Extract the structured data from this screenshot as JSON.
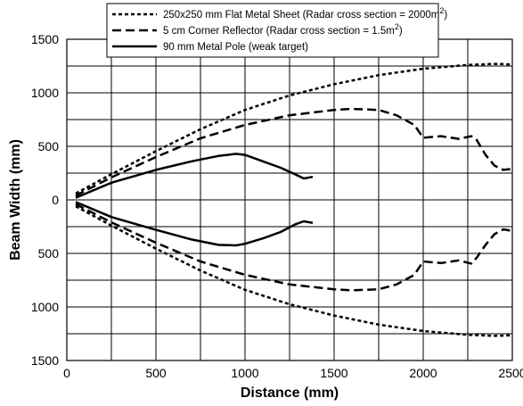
{
  "chart_data": {
    "type": "line",
    "xlabel": "Distance (mm)",
    "ylabel": "Beam Width (mm)",
    "xlim": [
      0,
      2500
    ],
    "ylim": [
      -1500,
      1500
    ],
    "x_ticks": [
      0,
      500,
      1000,
      1500,
      2000,
      2500
    ],
    "y_ticks": [
      1500,
      1000,
      500,
      0,
      -500,
      -1000,
      -1500
    ],
    "y_tick_labels": [
      "1500",
      "1000",
      "500",
      "0",
      "500",
      "1000",
      "1500"
    ],
    "grid": true,
    "legend_position": "top-center",
    "series": [
      {
        "name": "250x250 mm Flat Metal Sheet (Radar cross section = 2000m2)",
        "legend_text": "250x250 mm Flat Metal Sheet (Radar cross section = 2000m",
        "legend_sup": "2",
        "legend_suffix": ")",
        "dash": "short",
        "upper": [
          [
            50,
            60
          ],
          [
            250,
            240
          ],
          [
            500,
            455
          ],
          [
            750,
            660
          ],
          [
            1000,
            840
          ],
          [
            1250,
            975
          ],
          [
            1500,
            1080
          ],
          [
            1750,
            1165
          ],
          [
            2000,
            1225
          ],
          [
            2250,
            1260
          ],
          [
            2400,
            1270
          ],
          [
            2500,
            1265
          ]
        ],
        "lower": [
          [
            50,
            -60
          ],
          [
            250,
            -240
          ],
          [
            500,
            -455
          ],
          [
            750,
            -660
          ],
          [
            1000,
            -840
          ],
          [
            1250,
            -975
          ],
          [
            1500,
            -1080
          ],
          [
            1750,
            -1165
          ],
          [
            2000,
            -1225
          ],
          [
            2250,
            -1260
          ],
          [
            2400,
            -1270
          ],
          [
            2500,
            -1265
          ]
        ]
      },
      {
        "name": "5 cm Corner Reflector (Radar cross section = 1.5m2)",
        "legend_text": "5 cm Corner Reflector (Radar cross section = 1.5m",
        "legend_sup": "2",
        "legend_suffix": ")",
        "dash": "long",
        "upper": [
          [
            50,
            40
          ],
          [
            250,
            210
          ],
          [
            500,
            400
          ],
          [
            750,
            575
          ],
          [
            1000,
            700
          ],
          [
            1250,
            790
          ],
          [
            1500,
            840
          ],
          [
            1600,
            850
          ],
          [
            1750,
            840
          ],
          [
            1850,
            790
          ],
          [
            1950,
            700
          ],
          [
            2000,
            580
          ],
          [
            2100,
            595
          ],
          [
            2200,
            570
          ],
          [
            2270,
            595
          ],
          [
            2300,
            560
          ],
          [
            2350,
            420
          ],
          [
            2400,
            320
          ],
          [
            2450,
            280
          ],
          [
            2500,
            290
          ]
        ],
        "lower": [
          [
            50,
            -40
          ],
          [
            250,
            -210
          ],
          [
            500,
            -400
          ],
          [
            750,
            -575
          ],
          [
            1000,
            -700
          ],
          [
            1250,
            -790
          ],
          [
            1500,
            -835
          ],
          [
            1600,
            -845
          ],
          [
            1750,
            -835
          ],
          [
            1850,
            -790
          ],
          [
            1950,
            -700
          ],
          [
            2000,
            -575
          ],
          [
            2100,
            -590
          ],
          [
            2200,
            -565
          ],
          [
            2270,
            -595
          ],
          [
            2300,
            -540
          ],
          [
            2350,
            -420
          ],
          [
            2400,
            -320
          ],
          [
            2450,
            -275
          ],
          [
            2500,
            -290
          ]
        ]
      },
      {
        "name": "90 mm Metal Pole (weak target)",
        "legend_text": "90 mm Metal Pole (weak target)",
        "legend_sup": "",
        "legend_suffix": "",
        "dash": "solid",
        "upper": [
          [
            50,
            20
          ],
          [
            250,
            160
          ],
          [
            500,
            280
          ],
          [
            700,
            360
          ],
          [
            850,
            410
          ],
          [
            950,
            430
          ],
          [
            1000,
            420
          ],
          [
            1100,
            360
          ],
          [
            1200,
            300
          ],
          [
            1280,
            240
          ],
          [
            1330,
            200
          ],
          [
            1380,
            215
          ]
        ],
        "lower": [
          [
            50,
            -20
          ],
          [
            250,
            -160
          ],
          [
            500,
            -280
          ],
          [
            700,
            -370
          ],
          [
            850,
            -420
          ],
          [
            950,
            -425
          ],
          [
            1000,
            -410
          ],
          [
            1100,
            -360
          ],
          [
            1200,
            -300
          ],
          [
            1280,
            -230
          ],
          [
            1330,
            -200
          ],
          [
            1380,
            -215
          ]
        ]
      }
    ]
  }
}
